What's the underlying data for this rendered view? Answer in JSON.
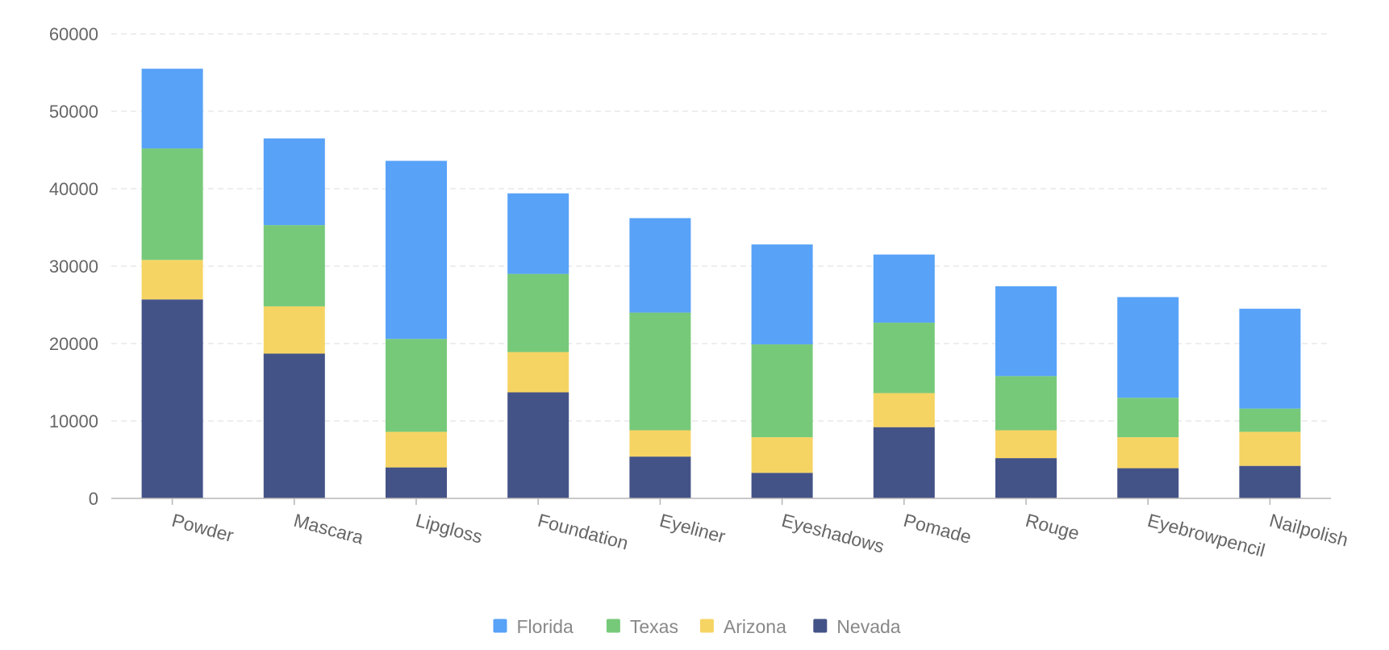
{
  "chart_data": {
    "type": "bar",
    "stacked": true,
    "title": "",
    "xlabel": "",
    "ylabel": "",
    "ylim": [
      0,
      60000
    ],
    "yticks": [
      0,
      10000,
      20000,
      30000,
      40000,
      50000,
      60000
    ],
    "ytick_labels": [
      "0",
      "10000",
      "20000",
      "30000",
      "40000",
      "50000",
      "60000"
    ],
    "grid": true,
    "legend_position": "bottom-center",
    "categories": [
      "Powder",
      "Mascara",
      "Lipgloss",
      "Foundation",
      "Eyeliner",
      "Eyeshadows",
      "Pomade",
      "Rouge",
      "Eyebrowpencil",
      "Nailpolish"
    ],
    "series": [
      {
        "name": "Nevada",
        "color": "#445387",
        "values": [
          25700,
          18700,
          4000,
          13700,
          5400,
          3300,
          9200,
          5200,
          3900,
          4200
        ]
      },
      {
        "name": "Arizona",
        "color": "#F6D463",
        "values": [
          5100,
          6100,
          4600,
          5200,
          3400,
          4600,
          4400,
          3600,
          4000,
          4400
        ]
      },
      {
        "name": "Texas",
        "color": "#77C97A",
        "values": [
          14400,
          10500,
          12000,
          10100,
          15200,
          12000,
          9100,
          7000,
          5100,
          3000
        ]
      },
      {
        "name": "Florida",
        "color": "#58A2F8",
        "values": [
          10300,
          11200,
          23000,
          10400,
          12200,
          12900,
          8800,
          11600,
          13000,
          12900
        ]
      }
    ],
    "legend_order": [
      "Florida",
      "Texas",
      "Arizona",
      "Nevada"
    ]
  },
  "colors": {
    "grid": "#e3e3e3",
    "axis": "#b5b5b5",
    "tick_text": "#666666",
    "legend_text": "#888888"
  }
}
